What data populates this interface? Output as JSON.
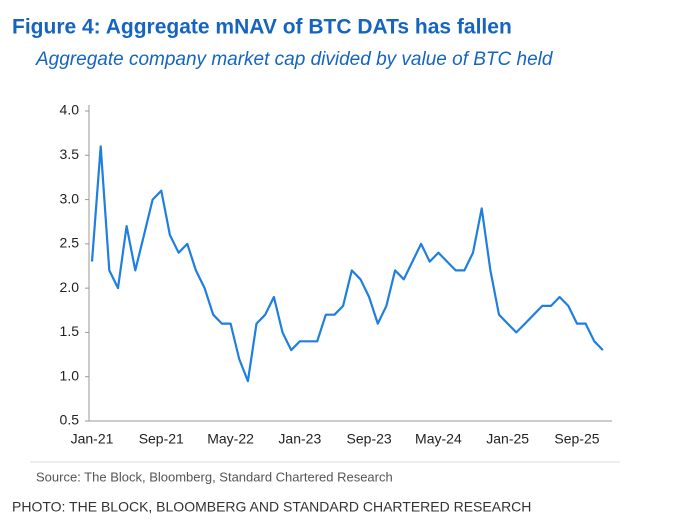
{
  "chart_data": {
    "type": "line",
    "title": "Figure 4: Aggregate mNAV of BTC DATs has fallen",
    "subtitle": "Aggregate company market cap divided by value of BTC held",
    "source": "Source: The Block, Bloomberg, Standard Chartered Research",
    "caption": "PHOTO: THE BLOCK, BLOOMBERG AND STANDARD CHARTERED RESEARCH",
    "categories": [
      "Jan-21",
      null,
      null,
      null,
      null,
      null,
      null,
      null,
      "Sep-21",
      null,
      null,
      null,
      null,
      null,
      null,
      null,
      "May-22",
      null,
      null,
      null,
      null,
      null,
      null,
      null,
      "Jan-23",
      null,
      null,
      null,
      null,
      null,
      null,
      null,
      "Sep-23",
      null,
      null,
      null,
      null,
      null,
      null,
      null,
      "May-24",
      null,
      null,
      null,
      null,
      null,
      null,
      null,
      "Jan-25",
      null,
      null,
      null,
      null,
      null,
      null,
      null,
      "Sep-25",
      null,
      null,
      null
    ],
    "series": [
      {
        "color": "#1f7fe0",
        "values": [
          2.3,
          3.6,
          2.2,
          2.0,
          2.7,
          2.2,
          2.6,
          3.0,
          3.1,
          2.6,
          2.4,
          2.5,
          2.2,
          2.0,
          1.7,
          1.6,
          1.6,
          1.2,
          0.95,
          1.6,
          1.7,
          1.9,
          1.5,
          1.3,
          1.4,
          1.4,
          1.4,
          1.7,
          1.7,
          1.8,
          2.2,
          2.1,
          1.9,
          1.6,
          1.8,
          2.2,
          2.1,
          2.3,
          2.5,
          2.3,
          2.4,
          2.3,
          2.2,
          2.2,
          2.4,
          2.9,
          2.2,
          1.7,
          1.6,
          1.5,
          1.6,
          1.7,
          1.8,
          1.8,
          1.9,
          1.8,
          1.6,
          1.6,
          1.4,
          1.3
        ]
      }
    ],
    "ylim": [
      0.5,
      4
    ],
    "yticks": [
      0.5,
      {
        "value": 1,
        "label": "1.0"
      },
      1.5,
      {
        "value": 2,
        "label": "2.0"
      },
      2.5,
      {
        "value": 3,
        "label": "3.0"
      },
      3.5,
      {
        "value": 4,
        "label": "4.0"
      }
    ],
    "grid": false
  }
}
